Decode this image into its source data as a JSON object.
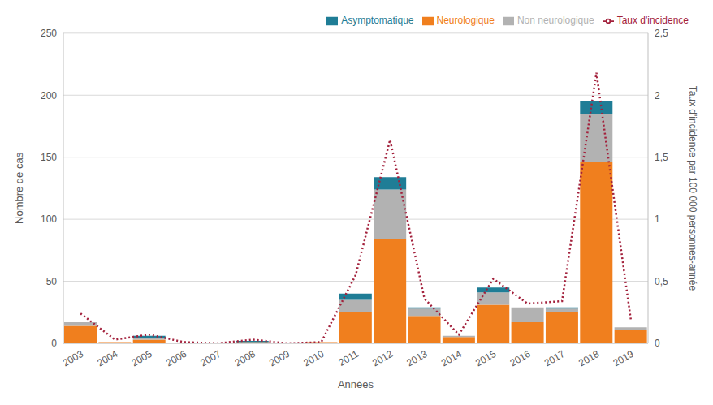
{
  "chart_data": {
    "type": "bar",
    "stacked": true,
    "x_label": "Années",
    "y_label": "Nombre de cas",
    "y2_label": "Taux d'incidence par 100 000 personnes-année",
    "categories": [
      "2003",
      "2004",
      "2005",
      "2006",
      "2007",
      "2008",
      "2009",
      "2010",
      "2011",
      "2012",
      "2013",
      "2014",
      "2015",
      "2016",
      "2017",
      "2018",
      "2019"
    ],
    "series": [
      {
        "name": "Neurologique",
        "type": "bar",
        "color": "#f07f1e",
        "values": [
          14,
          1,
          3,
          0,
          0,
          1,
          0,
          1,
          25,
          84,
          22,
          5,
          31,
          17,
          25,
          146,
          11
        ]
      },
      {
        "name": "Non neurologique",
        "type": "bar",
        "color": "#b2b2b2",
        "values": [
          3,
          0,
          1,
          0,
          0,
          0,
          0,
          0,
          10,
          40,
          6,
          1,
          10,
          12,
          3,
          39,
          2
        ]
      },
      {
        "name": "Asymptomatique",
        "type": "bar",
        "color": "#1f7d96",
        "values": [
          0,
          0,
          2,
          0,
          0,
          1,
          0,
          0,
          5,
          10,
          1,
          0,
          4,
          0,
          1,
          10,
          0
        ]
      },
      {
        "name": "Taux d'incidence",
        "type": "line",
        "axis": "y2",
        "color": "#a3213c",
        "line_style": "dotted",
        "values": [
          0.24,
          0.03,
          0.07,
          0.01,
          0.0,
          0.03,
          0.0,
          0.01,
          0.55,
          1.64,
          0.36,
          0.07,
          0.52,
          0.32,
          0.34,
          2.18,
          0.19
        ]
      }
    ],
    "ylim": [
      0,
      250
    ],
    "yticks": [
      0,
      50,
      100,
      150,
      200,
      250
    ],
    "y2lim": [
      0,
      2.5
    ],
    "y2ticks": [
      0,
      {
        "value": 0.5,
        "label": "0,5"
      },
      1,
      {
        "value": 1.5,
        "label": "1,5"
      },
      2,
      {
        "value": 2.5,
        "label": "2,5"
      }
    ],
    "grid": true,
    "legend": "upper right"
  }
}
